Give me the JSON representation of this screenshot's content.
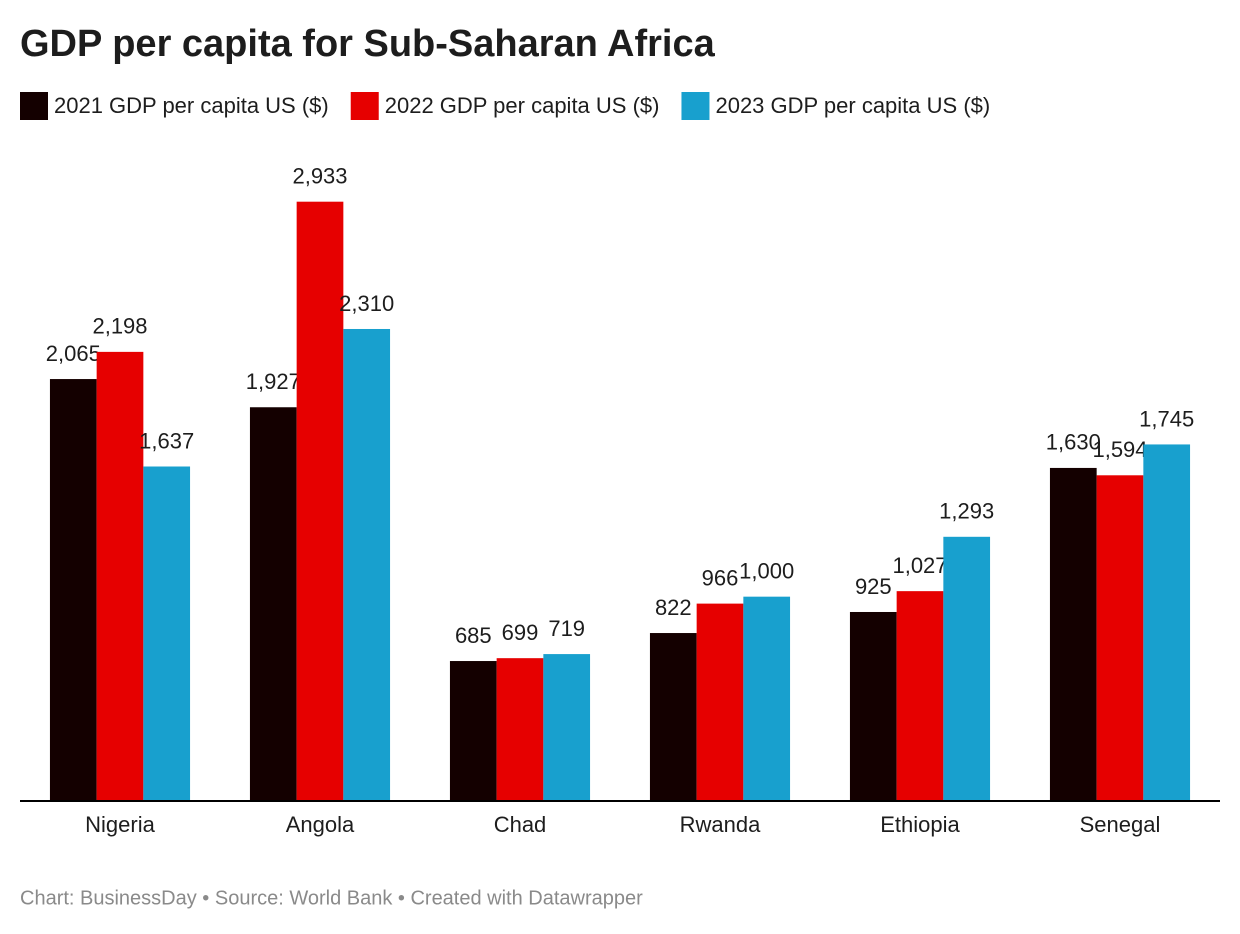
{
  "chart_data": {
    "type": "bar",
    "title": "GDP per capita for Sub-Saharan Africa",
    "categories": [
      "Nigeria",
      "Angola",
      "Chad",
      "Rwanda",
      "Ethiopia",
      "Senegal"
    ],
    "series": [
      {
        "name": "2021 GDP per capita US ($)",
        "color": "#140000",
        "values": [
          2065,
          1927,
          685,
          822,
          925,
          1630
        ],
        "value_labels": [
          "2,065",
          "1,927",
          "685",
          "822",
          "925",
          "1,630"
        ]
      },
      {
        "name": "2022 GDP per capita US ($)",
        "color": "#e60000",
        "values": [
          2198,
          2933,
          699,
          966,
          1027,
          1594
        ],
        "value_labels": [
          "2,198",
          "2,933",
          "699",
          "966",
          "1,027",
          "1,594"
        ]
      },
      {
        "name": "2023 GDP per capita US ($)",
        "color": "#18a0ce",
        "values": [
          1637,
          2310,
          719,
          1000,
          1293,
          1745
        ],
        "value_labels": [
          "1,637",
          "2,310",
          "719",
          "1,000",
          "1,293",
          "1,745"
        ]
      }
    ],
    "ylim": [
      0,
      3000
    ],
    "footer": "Chart: BusinessDay • Source: World Bank • Created with Datawrapper"
  }
}
